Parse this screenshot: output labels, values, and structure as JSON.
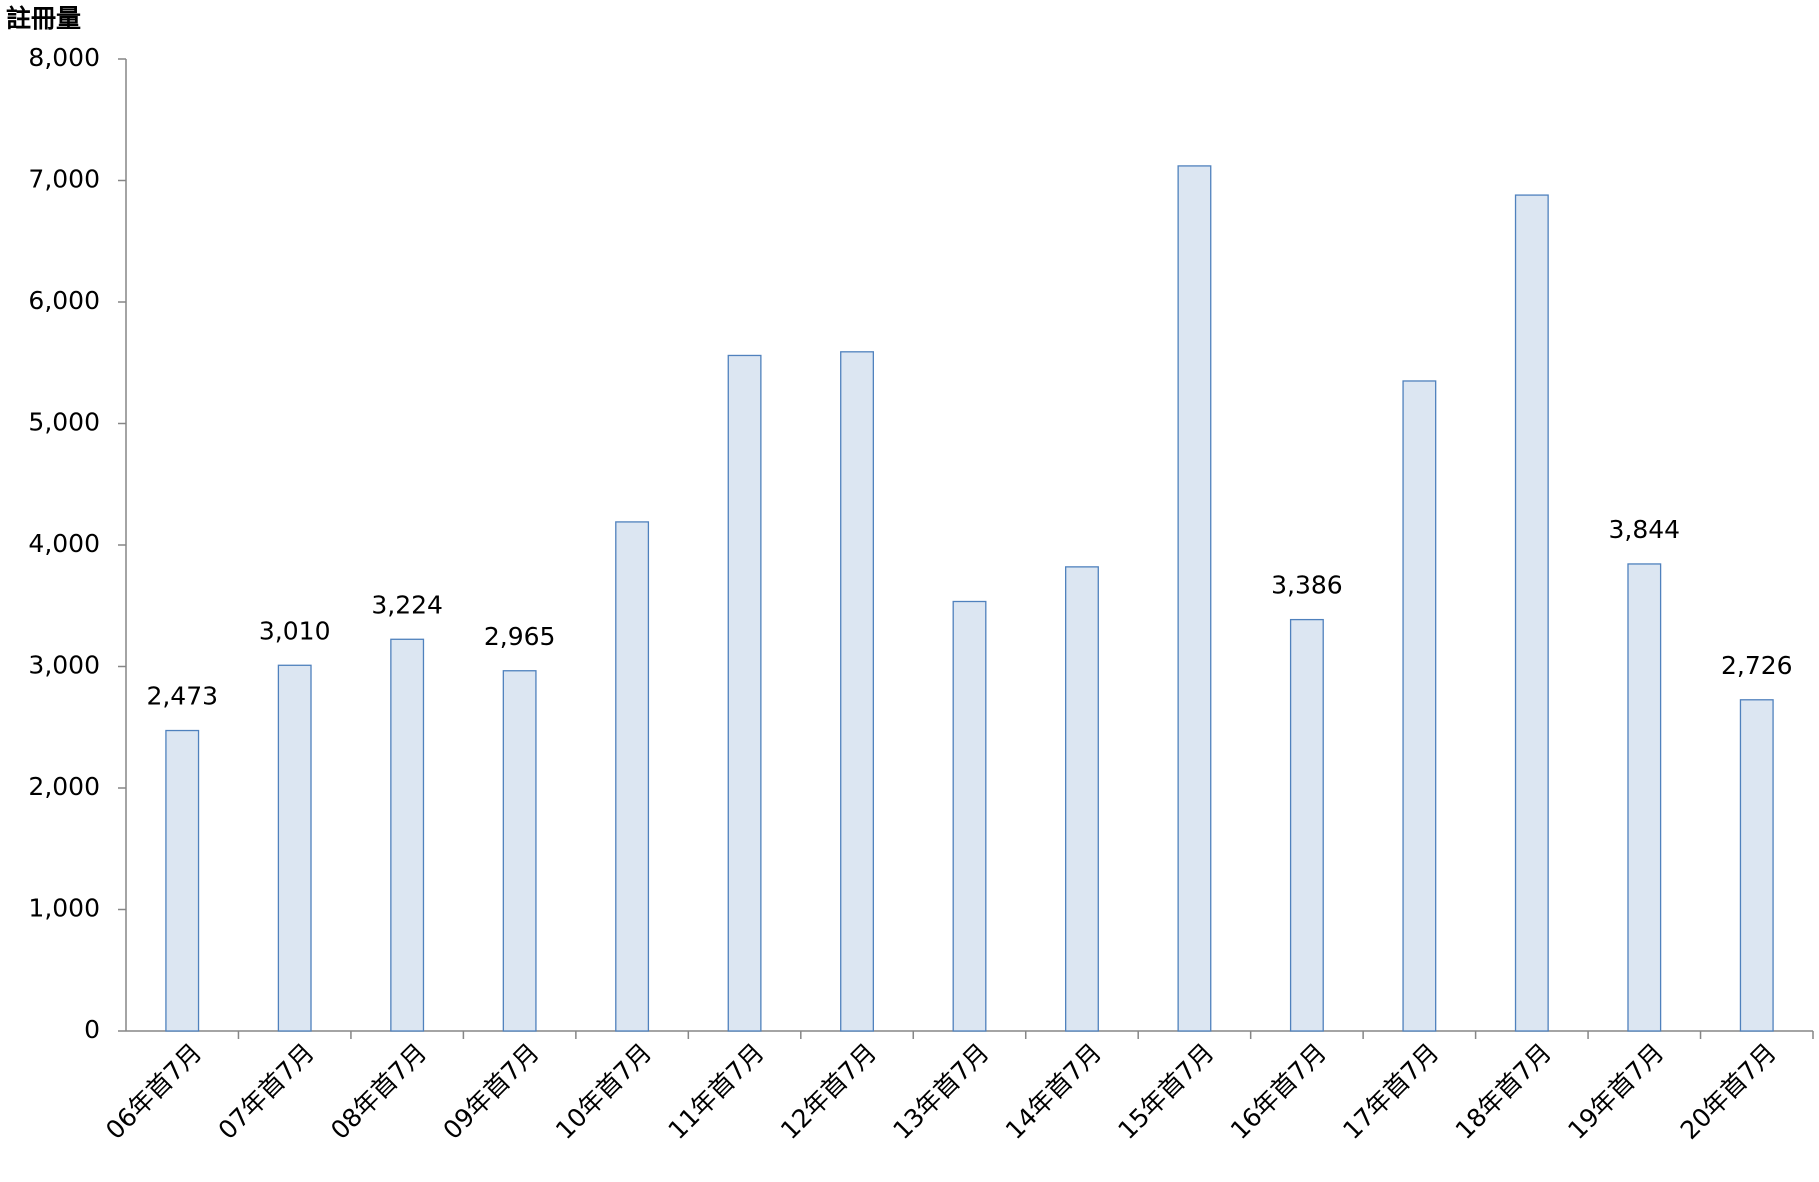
{
  "chart_data": {
    "type": "bar",
    "y_label": "註冊量",
    "categories": [
      "06年首7月",
      "07年首7月",
      "08年首7月",
      "09年首7月",
      "10年首7月",
      "11年首7月",
      "12年首7月",
      "13年首7月",
      "14年首7月",
      "15年首7月",
      "16年首7月",
      "17年首7月",
      "18年首7月",
      "19年首7月",
      "20年首7月"
    ],
    "values": [
      2473,
      3010,
      3224,
      2965,
      4190,
      5560,
      5590,
      3535,
      3820,
      7120,
      3386,
      5350,
      6880,
      3844,
      2726
    ],
    "value_labels": [
      "2,473",
      "3,010",
      "3,224",
      "2,965",
      null,
      null,
      null,
      null,
      null,
      null,
      "3,386",
      null,
      null,
      "3,844",
      "2,726"
    ],
    "color": "#dce6f2",
    "edge_color": "#4f81bd",
    "ylim": [
      0,
      8000
    ],
    "yticks": [
      0,
      {
        "value": 1000,
        "label": "1,000"
      },
      {
        "value": 2000,
        "label": "2,000"
      },
      {
        "value": 3000,
        "label": "3,000"
      },
      {
        "value": 4000,
        "label": "4,000"
      },
      {
        "value": 5000,
        "label": "5,000"
      },
      {
        "value": 6000,
        "label": "6,000"
      },
      {
        "value": 7000,
        "label": "7,000"
      },
      {
        "value": 8000,
        "label": "8,000"
      }
    ],
    "grid": false
  }
}
